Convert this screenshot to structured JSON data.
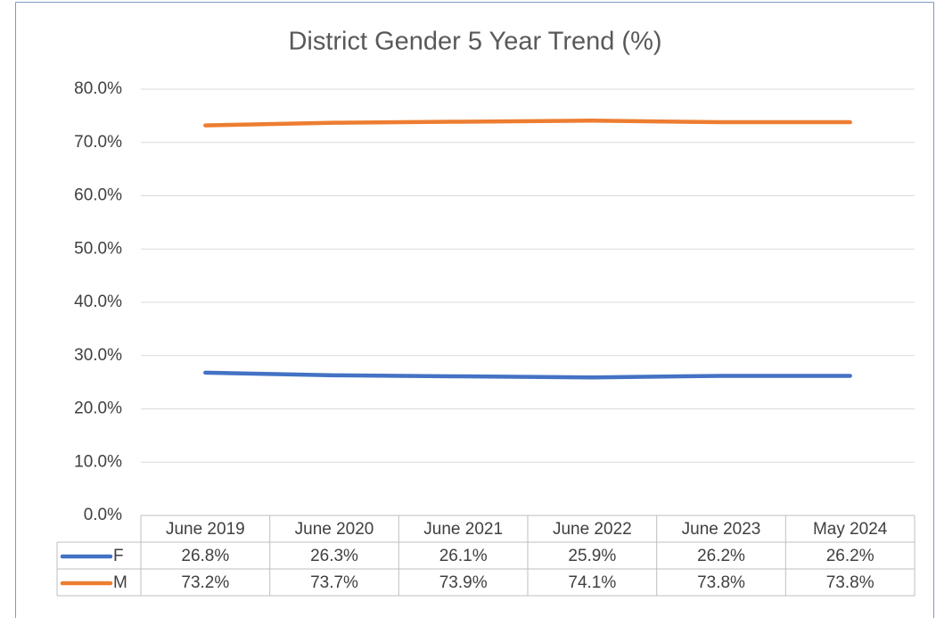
{
  "chart_data": {
    "type": "line",
    "title": "District Gender 5 Year Trend (%)",
    "categories": [
      "June 2019",
      "June 2020",
      "June 2021",
      "June 2022",
      "June 2023",
      "May 2024"
    ],
    "series": [
      {
        "name": "F",
        "color": "#4472c4",
        "values": [
          26.8,
          26.3,
          26.1,
          25.9,
          26.2,
          26.2
        ],
        "value_labels": [
          "26.8%",
          "26.3%",
          "26.1%",
          "25.9%",
          "26.2%",
          "26.2%"
        ]
      },
      {
        "name": "M",
        "color": "#ed7d31",
        "values": [
          73.2,
          73.7,
          73.9,
          74.1,
          73.8,
          73.8
        ],
        "value_labels": [
          "73.2%",
          "73.7%",
          "73.9%",
          "74.1%",
          "73.8%",
          "73.8%"
        ]
      }
    ],
    "ylim": [
      0,
      80
    ],
    "yticks": [
      {
        "value": 0,
        "label": "0.0%"
      },
      {
        "value": 10,
        "label": "10.0%"
      },
      {
        "value": 20,
        "label": "20.0%"
      },
      {
        "value": 30,
        "label": "30.0%"
      },
      {
        "value": 40,
        "label": "40.0%"
      },
      {
        "value": 50,
        "label": "50.0%"
      },
      {
        "value": 60,
        "label": "60.0%"
      },
      {
        "value": 70,
        "label": "70.0%"
      },
      {
        "value": 80,
        "label": "80.0%"
      }
    ],
    "grid": true,
    "data_table": true
  }
}
